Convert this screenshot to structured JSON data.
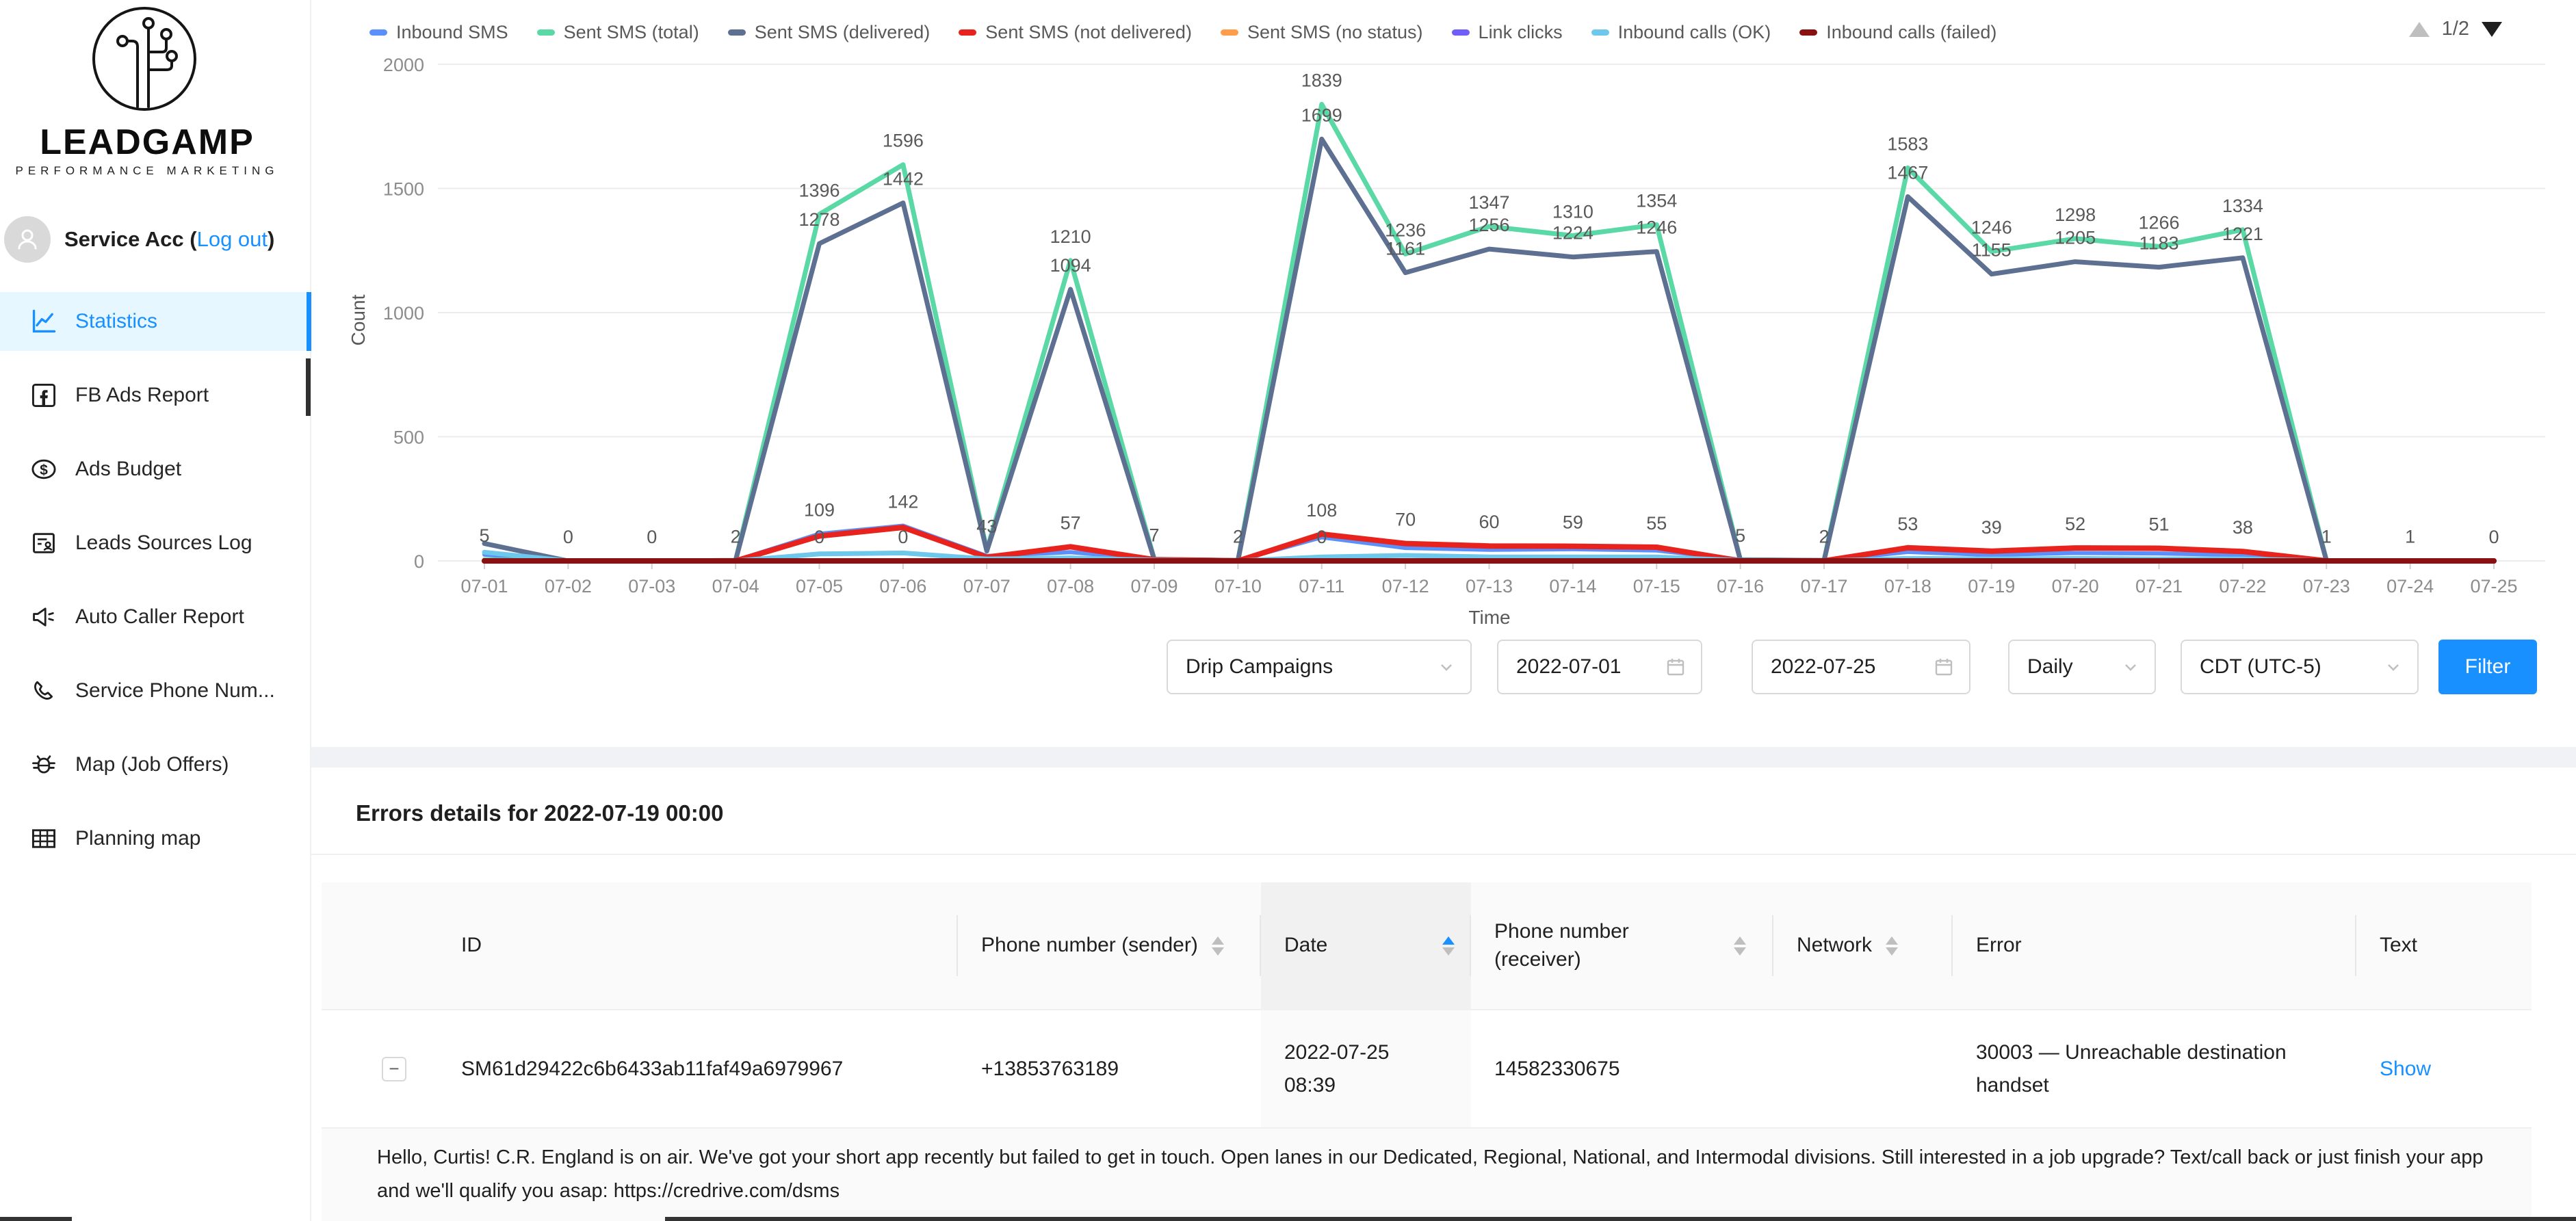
{
  "colors": {
    "accent": "#1890ff",
    "active_item_bg": "#e6f7ff",
    "link": "#1890ff",
    "table_header_bg": "#fafafa",
    "sorted_column_header_bg": "#f1f1f1",
    "sorted_column_cell_bg": "#fafafa",
    "section_band": "#f0f2f5",
    "divider": "#f0f0f0",
    "axis_text": "#8c8c8c",
    "legend_text": "#595959",
    "filter_button_bg": "#1890ff"
  },
  "sidebar": {
    "brand": {
      "name": "LEADGAMP",
      "tagline": "PERFORMANCE MARKETING"
    },
    "account": {
      "name": "Service Acc",
      "paren_open": " (",
      "logout_label": "Log out",
      "paren_close": ")"
    },
    "menu": [
      {
        "icon": "line-chart-icon",
        "label": "Statistics",
        "active": true
      },
      {
        "icon": "facebook-icon",
        "label": "FB Ads Report",
        "active": false
      },
      {
        "icon": "dollar-icon",
        "label": "Ads Budget",
        "active": false
      },
      {
        "icon": "leads-log-icon",
        "label": "Leads Sources Log",
        "active": false
      },
      {
        "icon": "megaphone-icon",
        "label": "Auto Caller Report",
        "active": false
      },
      {
        "icon": "phone-icon",
        "label": "Service Phone Num...",
        "active": false
      },
      {
        "icon": "bug-icon",
        "label": "Map (Job Offers)",
        "active": false
      },
      {
        "icon": "grid-icon",
        "label": "Planning map",
        "active": false
      }
    ]
  },
  "pagination": {
    "label": "1/2"
  },
  "chart_data": {
    "type": "line",
    "title": "",
    "xlabel": "Time",
    "ylabel": "Count",
    "ylim": [
      0,
      2000
    ],
    "yticks": [
      2000,
      1500,
      1000,
      500,
      0
    ],
    "grid": "horizontal",
    "legend_position": "top",
    "categories": [
      "07-01",
      "07-02",
      "07-03",
      "07-04",
      "07-05",
      "07-06",
      "07-07",
      "07-08",
      "07-09",
      "07-10",
      "07-11",
      "07-12",
      "07-13",
      "07-14",
      "07-15",
      "07-16",
      "07-17",
      "07-18",
      "07-19",
      "07-20",
      "07-21",
      "07-22",
      "07-23",
      "07-24",
      "07-25"
    ],
    "series": [
      {
        "name": "Inbound SMS",
        "color": "#5B8FF9",
        "width": 6,
        "values": [
          25,
          0,
          0,
          2,
          109,
          142,
          20,
          35,
          7,
          2,
          95,
          52,
          45,
          47,
          42,
          5,
          2,
          36,
          24,
          32,
          30,
          24,
          1,
          1,
          0
        ]
      },
      {
        "name": "Sent SMS (total)",
        "color": "#5AD8A6",
        "width": 7,
        "values": [
          5,
          0,
          0,
          2,
          1396,
          1596,
          43,
          1210,
          7,
          2,
          1839,
          1236,
          1347,
          1310,
          1354,
          5,
          2,
          1583,
          1246,
          1298,
          1266,
          1334,
          1,
          1,
          0
        ]
      },
      {
        "name": "Sent SMS (delivered)",
        "color": "#5D7092",
        "width": 7,
        "values": [
          70,
          0,
          0,
          2,
          1278,
          1442,
          40,
          1094,
          6,
          2,
          1699,
          1161,
          1256,
          1224,
          1246,
          4,
          2,
          1467,
          1155,
          1205,
          1183,
          1221,
          1,
          1,
          0
        ]
      },
      {
        "name": "Sent SMS (not delivered)",
        "color": "#E8231D",
        "width": 8,
        "values": [
          0,
          0,
          0,
          0,
          100,
          135,
          15,
          57,
          5,
          0,
          108,
          70,
          60,
          59,
          55,
          0,
          0,
          53,
          39,
          52,
          51,
          38,
          0,
          0,
          0
        ]
      },
      {
        "name": "Sent SMS (no status)",
        "color": "#FF9D4D",
        "width": 6,
        "values": [
          0,
          0,
          0,
          0,
          0,
          0,
          0,
          0,
          0,
          0,
          0,
          0,
          0,
          0,
          0,
          0,
          0,
          0,
          0,
          0,
          0,
          0,
          0,
          0,
          0
        ]
      },
      {
        "name": "Link clicks",
        "color": "#6F5EF9",
        "width": 6,
        "values": [
          0,
          0,
          0,
          0,
          0,
          0,
          0,
          0,
          0,
          0,
          0,
          0,
          0,
          0,
          0,
          0,
          0,
          0,
          0,
          0,
          0,
          0,
          0,
          0,
          0
        ]
      },
      {
        "name": "Inbound calls (OK)",
        "color": "#6DC8EC",
        "width": 7,
        "values": [
          35,
          0,
          0,
          0,
          28,
          32,
          8,
          12,
          3,
          0,
          16,
          22,
          16,
          16,
          16,
          2,
          0,
          10,
          8,
          10,
          8,
          8,
          0,
          0,
          0
        ]
      },
      {
        "name": "Inbound calls (failed)",
        "color": "#8A1111",
        "width": 8,
        "values": [
          0,
          0,
          0,
          0,
          0,
          0,
          0,
          0,
          0,
          0,
          0,
          0,
          0,
          0,
          0,
          0,
          0,
          0,
          0,
          0,
          0,
          0,
          0,
          0,
          0
        ]
      }
    ],
    "point_labels": [
      {
        "i": 0,
        "v": 5,
        "t": "5"
      },
      {
        "i": 1,
        "v": 0,
        "t": "0"
      },
      {
        "i": 2,
        "v": 0,
        "t": "0"
      },
      {
        "i": 3,
        "v": 2,
        "t": "2"
      },
      {
        "i": 4,
        "v": 1396,
        "t": "1396"
      },
      {
        "i": 4,
        "v": 1278,
        "t": "1278"
      },
      {
        "i": 4,
        "v": 109,
        "t": "109"
      },
      {
        "i": 4,
        "v": 0,
        "t": "0"
      },
      {
        "i": 5,
        "v": 1596,
        "t": "1596"
      },
      {
        "i": 5,
        "v": 1442,
        "t": "1442"
      },
      {
        "i": 5,
        "v": 142,
        "t": "142"
      },
      {
        "i": 5,
        "v": 0,
        "t": "0"
      },
      {
        "i": 6,
        "v": 43,
        "t": "43"
      },
      {
        "i": 7,
        "v": 1210,
        "t": "1210"
      },
      {
        "i": 7,
        "v": 1094,
        "t": "1094"
      },
      {
        "i": 7,
        "v": 57,
        "t": "57"
      },
      {
        "i": 8,
        "v": 7,
        "t": "7"
      },
      {
        "i": 9,
        "v": 2,
        "t": "2"
      },
      {
        "i": 10,
        "v": 1839,
        "t": "1839"
      },
      {
        "i": 10,
        "v": 1699,
        "t": "1699"
      },
      {
        "i": 10,
        "v": 108,
        "t": "108"
      },
      {
        "i": 10,
        "v": 0,
        "t": "0"
      },
      {
        "i": 11,
        "v": 1236,
        "t": "1236"
      },
      {
        "i": 11,
        "v": 1161,
        "t": "1161"
      },
      {
        "i": 11,
        "v": 70,
        "t": "70"
      },
      {
        "i": 12,
        "v": 1347,
        "t": "1347"
      },
      {
        "i": 12,
        "v": 1256,
        "t": "1256"
      },
      {
        "i": 12,
        "v": 60,
        "t": "60"
      },
      {
        "i": 13,
        "v": 1310,
        "t": "1310"
      },
      {
        "i": 13,
        "v": 1224,
        "t": "1224"
      },
      {
        "i": 13,
        "v": 59,
        "t": "59"
      },
      {
        "i": 14,
        "v": 1354,
        "t": "1354"
      },
      {
        "i": 14,
        "v": 1246,
        "t": "1246"
      },
      {
        "i": 14,
        "v": 55,
        "t": "55"
      },
      {
        "i": 15,
        "v": 5,
        "t": "5"
      },
      {
        "i": 16,
        "v": 2,
        "t": "2"
      },
      {
        "i": 17,
        "v": 1583,
        "t": "1583"
      },
      {
        "i": 17,
        "v": 1467,
        "t": "1467"
      },
      {
        "i": 17,
        "v": 53,
        "t": "53"
      },
      {
        "i": 18,
        "v": 1246,
        "t": "1246"
      },
      {
        "i": 18,
        "v": 1155,
        "t": "1155"
      },
      {
        "i": 18,
        "v": 39,
        "t": "39"
      },
      {
        "i": 19,
        "v": 1298,
        "t": "1298"
      },
      {
        "i": 19,
        "v": 1205,
        "t": "1205"
      },
      {
        "i": 19,
        "v": 52,
        "t": "52"
      },
      {
        "i": 20,
        "v": 1266,
        "t": "1266"
      },
      {
        "i": 20,
        "v": 1183,
        "t": "1183"
      },
      {
        "i": 20,
        "v": 51,
        "t": "51"
      },
      {
        "i": 21,
        "v": 1334,
        "t": "1334"
      },
      {
        "i": 21,
        "v": 1221,
        "t": "1221"
      },
      {
        "i": 21,
        "v": 38,
        "t": "38"
      },
      {
        "i": 22,
        "v": 1,
        "t": "1"
      },
      {
        "i": 23,
        "v": 1,
        "t": "1"
      },
      {
        "i": 24,
        "v": 0,
        "t": "0"
      }
    ]
  },
  "filters": {
    "campaign": "Drip Campaigns",
    "date_from": "2022-07-01",
    "date_to": "2022-07-25",
    "granularity": "Daily",
    "timezone": "CDT (UTC-5)",
    "button_label": "Filter"
  },
  "errors": {
    "title": "Errors details for 2022-07-19 00:00",
    "table": {
      "columns": [
        {
          "label": ""
        },
        {
          "label": "ID"
        },
        {
          "label": "Phone number (sender)"
        },
        {
          "label": "Date"
        },
        {
          "label": "Phone number (receiver)"
        },
        {
          "label": "Network"
        },
        {
          "label": "Error"
        },
        {
          "label": "Text"
        }
      ],
      "sort": {
        "column": "Date",
        "direction": "asc"
      },
      "row": {
        "expand_symbol": "−",
        "id": "SM61d29422c6b6433ab11faf49a6979967",
        "sender": "+13853763189",
        "date_lines": [
          "2022-07-25",
          "08:39"
        ],
        "receiver": "14582330675",
        "network": "",
        "error": "30003 — Unreachable destination handset",
        "text_action": "Show"
      },
      "expanded_text": "Hello, Curtis! C.R. England is on air. We've got your short app recently but failed to get in touch. Open lanes in our Dedicated, Regional, National, and Intermodal divisions. Still interested in a job upgrade? Text/call back or just finish your app and we'll qualify you asap: https://credrive.com/dsms"
    }
  }
}
